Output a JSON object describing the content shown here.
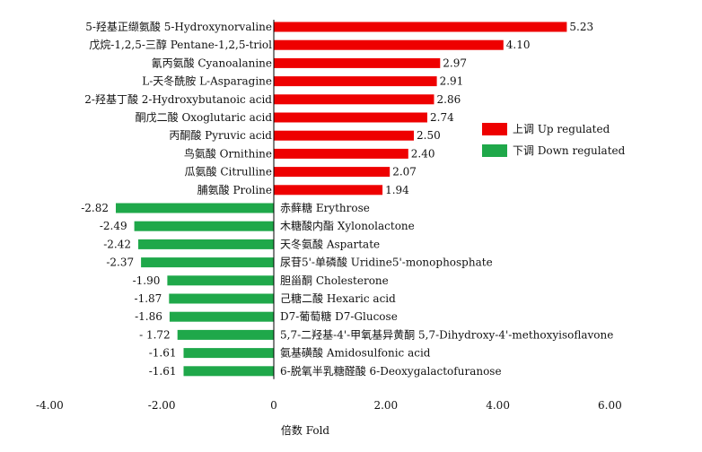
{
  "chart_data": {
    "type": "bar",
    "orientation": "horizontal",
    "categories": [
      "5-羟基正缬氨酸 5-Hydroxynorvaline",
      "戊烷-1,2,5-三醇 Pentane-1,2,5-triol",
      "氰丙氨酸 Cyanoalanine",
      "L-天冬酰胺 L-Asparagine",
      "2-羟基丁酸 2-Hydroxybutanoic acid",
      "酮戊二酸 Oxoglutaric acid",
      "丙酮酸 Pyruvic acid",
      "鸟氨酸 Ornithine",
      "瓜氨酸 Citrulline",
      "脯氨酸 Proline",
      "赤藓糖 Erythrose",
      "木糖酸内酯 Xylonolactone",
      "天冬氨酸 Aspartate",
      "尿苷5'-单磷酸 Uridine5'-monophosphate",
      "胆甾酮 Cholesterone",
      "己糖二酸 Hexaric acid",
      "D7-葡萄糖 D7-Glucose",
      "5,7-二羟基-4'-甲氧基异黄酮 5,7-Dihydroxy-4'-methoxyisoflavone",
      "氨基磺酸 Amidosulfonic acid",
      "6-脱氧半乳糖醛酸 6-Deoxygalactofuranose"
    ],
    "values": [
      5.23,
      4.1,
      2.97,
      2.91,
      2.86,
      2.74,
      2.5,
      2.4,
      2.07,
      1.94,
      -2.82,
      -2.49,
      -2.42,
      -2.37,
      -1.9,
      -1.87,
      -1.86,
      -1.72,
      -1.61,
      -1.61
    ],
    "value_labels": [
      "5.23",
      "4.10",
      "2.97",
      "2.91",
      "2.86",
      "2.74",
      "2.50",
      "2.40",
      "2.07",
      "1.94",
      "-2.82",
      "-2.49",
      "-2.42",
      "-2.37",
      "-1.90",
      "-1.87",
      "-1.86",
      "- 1.72",
      "-1.61",
      "-1.61"
    ],
    "xlabel": "倍数 Fold",
    "xlim": [
      -4,
      6
    ],
    "xticks": [
      -4,
      -2,
      0,
      2,
      4,
      6
    ],
    "xtick_labels": [
      "-4.00",
      "-2.00",
      "0",
      "2.00",
      "4.00",
      "6.00"
    ],
    "grid": false,
    "legend": {
      "placement": "right",
      "entries": [
        {
          "label": "上调  Up regulated",
          "color": "#ee0000"
        },
        {
          "label": "下调  Down regulated",
          "color": "#1fa84a"
        }
      ]
    },
    "colors": {
      "up": "#ee0000",
      "down": "#1fa84a"
    }
  }
}
